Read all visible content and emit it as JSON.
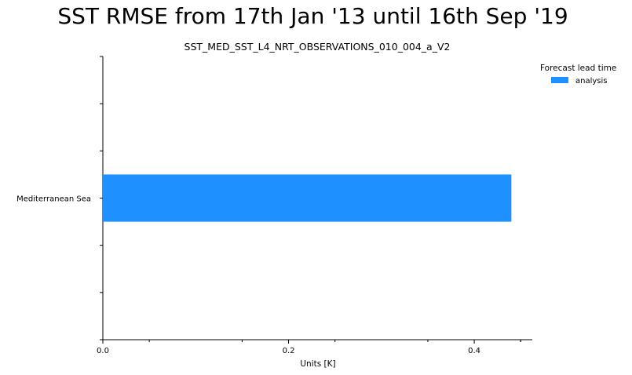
{
  "suptitle": "SST RMSE from 17th Jan '13 until 16th Sep '19",
  "chart_data": {
    "type": "bar",
    "orientation": "horizontal",
    "title": "SST_MED_SST_L4_NRT_OBSERVATIONS_010_004_a_V2",
    "categories": [
      "Mediterranean Sea"
    ],
    "series": [
      {
        "name": "analysis",
        "values": [
          0.44
        ],
        "color": "#1e90ff"
      }
    ],
    "xlabel": "Units [K]",
    "ylabel": "",
    "xlim": [
      0.0,
      0.4625
    ],
    "xticks": [
      "0.0",
      "0.2",
      "0.4"
    ],
    "xtick_values": [
      0.0,
      0.2,
      0.4
    ],
    "legend_title": "Forecast lead time",
    "legend_position": "top-right",
    "grid": false
  }
}
